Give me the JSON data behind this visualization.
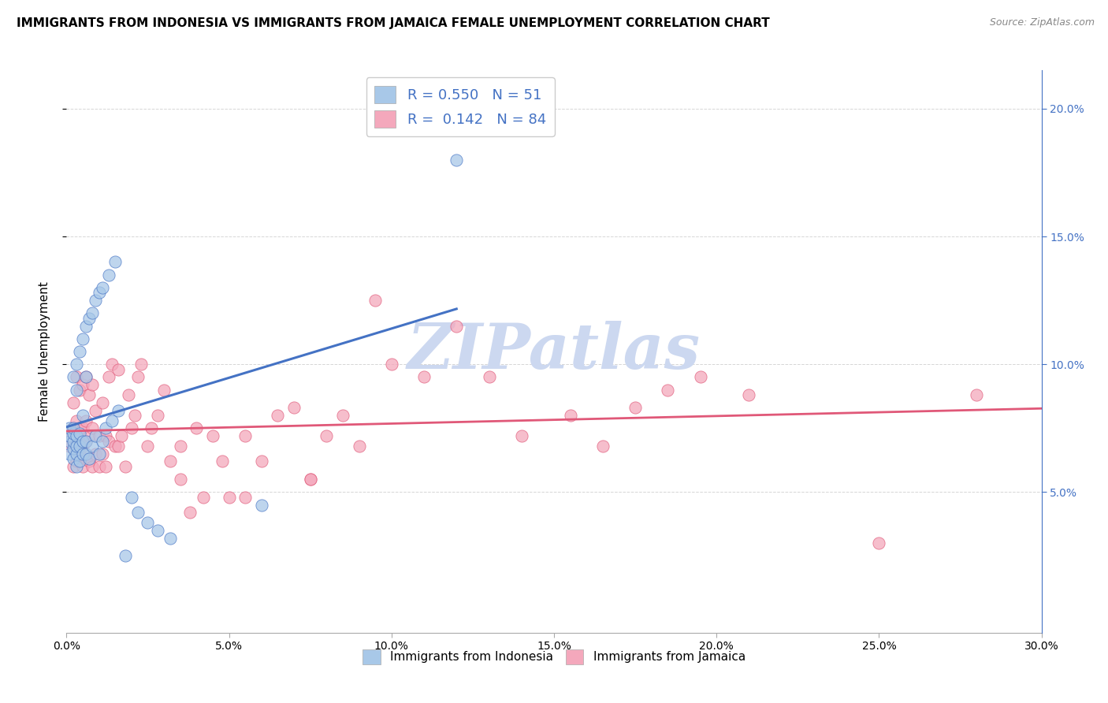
{
  "title": "IMMIGRANTS FROM INDONESIA VS IMMIGRANTS FROM JAMAICA FEMALE UNEMPLOYMENT CORRELATION CHART",
  "source": "Source: ZipAtlas.com",
  "ylabel": "Female Unemployment",
  "xlim": [
    0.0,
    0.3
  ],
  "ylim": [
    -0.005,
    0.215
  ],
  "xticks": [
    0.0,
    0.05,
    0.1,
    0.15,
    0.2,
    0.25,
    0.3
  ],
  "yticks": [
    0.05,
    0.1,
    0.15,
    0.2
  ],
  "ytick_labels": [
    "5.0%",
    "10.0%",
    "15.0%",
    "20.0%"
  ],
  "xtick_labels": [
    "0.0%",
    "5.0%",
    "10.0%",
    "15.0%",
    "20.0%",
    "25.0%",
    "30.0%"
  ],
  "color_indonesia": "#a8c8e8",
  "color_jamaica": "#f4a8bc",
  "line_color_indonesia": "#4472c4",
  "line_color_jamaica": "#e05878",
  "R_indonesia": 0.55,
  "N_indonesia": 51,
  "R_jamaica": 0.142,
  "N_jamaica": 84,
  "legend_label_indonesia": "Immigrants from Indonesia",
  "legend_label_jamaica": "Immigrants from Jamaica",
  "watermark": "ZIPatlas",
  "watermark_color": "#ccd8f0",
  "background_color": "#ffffff",
  "grid_color": "#cccccc",
  "right_axis_color": "#4472c4",
  "title_fontsize": 11,
  "source_fontsize": 9,
  "indonesia_x": [
    0.001,
    0.001,
    0.001,
    0.001,
    0.002,
    0.002,
    0.002,
    0.002,
    0.002,
    0.002,
    0.003,
    0.003,
    0.003,
    0.003,
    0.003,
    0.003,
    0.004,
    0.004,
    0.004,
    0.004,
    0.005,
    0.005,
    0.005,
    0.005,
    0.006,
    0.006,
    0.006,
    0.006,
    0.007,
    0.007,
    0.008,
    0.008,
    0.009,
    0.009,
    0.01,
    0.01,
    0.011,
    0.011,
    0.012,
    0.013,
    0.014,
    0.015,
    0.016,
    0.018,
    0.02,
    0.022,
    0.025,
    0.028,
    0.032,
    0.06,
    0.12
  ],
  "indonesia_y": [
    0.065,
    0.07,
    0.072,
    0.075,
    0.063,
    0.067,
    0.07,
    0.073,
    0.075,
    0.095,
    0.06,
    0.065,
    0.068,
    0.072,
    0.09,
    0.1,
    0.062,
    0.068,
    0.073,
    0.105,
    0.065,
    0.07,
    0.08,
    0.11,
    0.065,
    0.07,
    0.095,
    0.115,
    0.063,
    0.118,
    0.068,
    0.12,
    0.072,
    0.125,
    0.065,
    0.128,
    0.07,
    0.13,
    0.075,
    0.135,
    0.078,
    0.14,
    0.082,
    0.025,
    0.048,
    0.042,
    0.038,
    0.035,
    0.032,
    0.045,
    0.18
  ],
  "jamaica_x": [
    0.001,
    0.001,
    0.002,
    0.002,
    0.002,
    0.003,
    0.003,
    0.003,
    0.003,
    0.004,
    0.004,
    0.004,
    0.005,
    0.005,
    0.005,
    0.005,
    0.006,
    0.006,
    0.006,
    0.006,
    0.007,
    0.007,
    0.007,
    0.008,
    0.008,
    0.008,
    0.009,
    0.009,
    0.01,
    0.01,
    0.011,
    0.011,
    0.012,
    0.012,
    0.013,
    0.013,
    0.014,
    0.015,
    0.016,
    0.016,
    0.017,
    0.018,
    0.019,
    0.02,
    0.021,
    0.022,
    0.023,
    0.025,
    0.026,
    0.028,
    0.03,
    0.032,
    0.035,
    0.038,
    0.04,
    0.042,
    0.045,
    0.048,
    0.05,
    0.055,
    0.06,
    0.065,
    0.07,
    0.075,
    0.08,
    0.085,
    0.09,
    0.1,
    0.11,
    0.12,
    0.13,
    0.14,
    0.155,
    0.165,
    0.175,
    0.185,
    0.195,
    0.21,
    0.25,
    0.28,
    0.035,
    0.055,
    0.075,
    0.095
  ],
  "jamaica_y": [
    0.068,
    0.072,
    0.06,
    0.075,
    0.085,
    0.062,
    0.07,
    0.078,
    0.095,
    0.065,
    0.075,
    0.09,
    0.06,
    0.068,
    0.075,
    0.092,
    0.063,
    0.07,
    0.078,
    0.095,
    0.062,
    0.072,
    0.088,
    0.06,
    0.075,
    0.092,
    0.065,
    0.082,
    0.06,
    0.072,
    0.065,
    0.085,
    0.06,
    0.072,
    0.07,
    0.095,
    0.1,
    0.068,
    0.068,
    0.098,
    0.072,
    0.06,
    0.088,
    0.075,
    0.08,
    0.095,
    0.1,
    0.068,
    0.075,
    0.08,
    0.09,
    0.062,
    0.068,
    0.042,
    0.075,
    0.048,
    0.072,
    0.062,
    0.048,
    0.072,
    0.062,
    0.08,
    0.083,
    0.055,
    0.072,
    0.08,
    0.068,
    0.1,
    0.095,
    0.115,
    0.095,
    0.072,
    0.08,
    0.068,
    0.083,
    0.09,
    0.095,
    0.088,
    0.03,
    0.088,
    0.055,
    0.048,
    0.055,
    0.125
  ]
}
